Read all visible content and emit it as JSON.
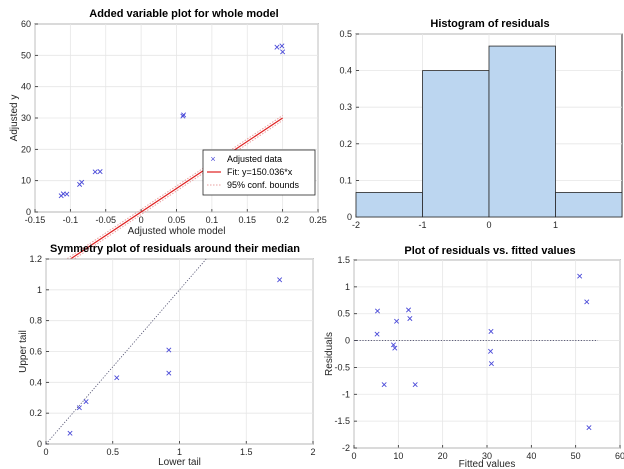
{
  "chart_data": [
    {
      "type": "scatter",
      "title": "Added variable plot for whole model",
      "xlabel": "Adjusted whole model",
      "ylabel": "Adjusted y",
      "xlim": [
        -0.15,
        0.25
      ],
      "ylim": [
        0,
        60
      ],
      "xticks": [
        "-0.15",
        "-0.1",
        "-0.05",
        "0",
        "0.05",
        "0.1",
        "0.15",
        "0.2",
        "0.25"
      ],
      "yticks": [
        "0",
        "10",
        "20",
        "30",
        "40",
        "50",
        "60"
      ],
      "grid": true,
      "legend_position": "bottom-right",
      "series": [
        {
          "name": "Adjusted data",
          "marker": "x",
          "color": "#4a4ad8",
          "points": [
            [
              -0.113,
              5.2
            ],
            [
              -0.11,
              5.8
            ],
            [
              -0.105,
              5.7
            ],
            [
              -0.087,
              8.8
            ],
            [
              -0.084,
              9.5
            ],
            [
              -0.065,
              12.8
            ],
            [
              -0.058,
              12.9
            ],
            [
              0.059,
              30.6
            ],
            [
              0.06,
              31.0
            ],
            [
              0.192,
              52.6
            ],
            [
              0.199,
              53.0
            ],
            [
              0.2,
              51.1
            ]
          ]
        },
        {
          "name": "Fit: y=150.036*x",
          "line": "solid",
          "color": "#e02020",
          "slope": 150.036,
          "x_range": [
            -0.115,
            0.2
          ]
        },
        {
          "name": "95% conf. bounds",
          "line": "dotted",
          "color": "#e8a0a0",
          "offset": 0.8,
          "x_range": [
            -0.115,
            0.2
          ]
        }
      ]
    },
    {
      "type": "bar",
      "title": "Histogram of residuals",
      "xlim": [
        -2,
        2
      ],
      "ylim": [
        0,
        0.5
      ],
      "xticks": [
        "-2",
        "-1",
        "0",
        "1"
      ],
      "yticks": [
        "0",
        "0.1",
        "0.2",
        "0.3",
        "0.4",
        "0.5"
      ],
      "grid": true,
      "bar_color": "#bcd6f0",
      "bins": [
        [
          -2,
          -1
        ],
        [
          -1,
          0
        ],
        [
          0,
          1
        ],
        [
          1,
          2
        ]
      ],
      "values": [
        0.067,
        0.4,
        0.467,
        0.067
      ]
    },
    {
      "type": "scatter",
      "title": "Symmetry plot of residuals around their median",
      "xlabel": "Lower tail",
      "ylabel": "Upper tail",
      "xlim": [
        0,
        2
      ],
      "ylim": [
        0,
        1.2
      ],
      "xticks": [
        "0",
        "0.5",
        "1",
        "1.5",
        "2"
      ],
      "yticks": [
        "0",
        "0.2",
        "0.4",
        "0.6",
        "0.8",
        "1",
        "1.2"
      ],
      "grid": true,
      "reference_line": "y=x",
      "marker_color": "#4a4ad8",
      "points": [
        [
          0.18,
          0.07
        ],
        [
          0.25,
          0.235
        ],
        [
          0.3,
          0.275
        ],
        [
          0.53,
          0.43
        ],
        [
          0.92,
          0.46
        ],
        [
          0.92,
          0.61
        ],
        [
          1.75,
          1.065
        ]
      ]
    },
    {
      "type": "scatter",
      "title": "Plot of residuals vs. fitted values",
      "xlabel": "Fitted values",
      "ylabel": "Residuals",
      "xlim": [
        0,
        60
      ],
      "ylim": [
        -2,
        1.5
      ],
      "xticks": [
        "0",
        "10",
        "20",
        "30",
        "40",
        "50",
        "60"
      ],
      "yticks": [
        "-2",
        "-1.5",
        "-1",
        "-0.5",
        "0",
        "0.5",
        "1",
        "1.5"
      ],
      "grid": true,
      "reference_line": "y=0",
      "marker_color": "#4a4ad8",
      "points": [
        [
          5.3,
          0.55
        ],
        [
          5.2,
          0.12
        ],
        [
          6.8,
          -0.82
        ],
        [
          8.9,
          -0.08
        ],
        [
          9.2,
          -0.14
        ],
        [
          9.6,
          0.36
        ],
        [
          12.3,
          0.57
        ],
        [
          12.6,
          0.41
        ],
        [
          13.8,
          -0.82
        ],
        [
          30.9,
          0.17
        ],
        [
          30.8,
          -0.2
        ],
        [
          31.0,
          -0.43
        ],
        [
          50.9,
          1.2
        ],
        [
          52.5,
          0.72
        ],
        [
          53.0,
          -1.62
        ]
      ]
    }
  ]
}
